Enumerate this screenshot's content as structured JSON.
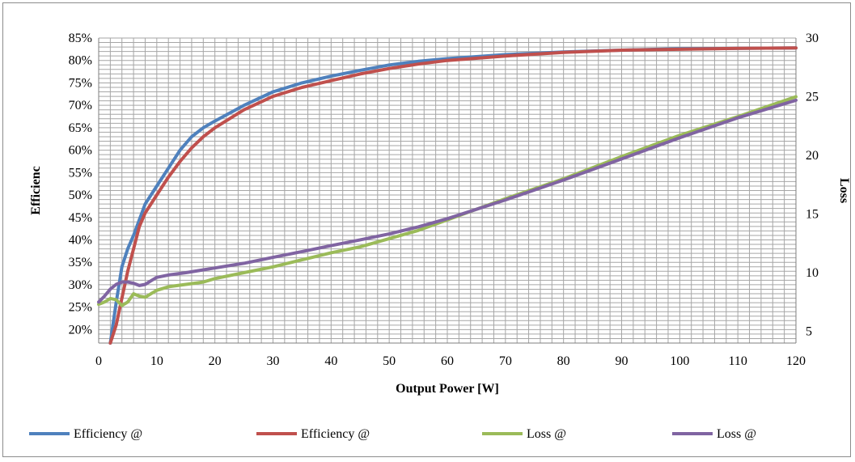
{
  "chart_data": {
    "type": "line",
    "title": "",
    "xlabel": "Output Power [W]",
    "ylabel": "Efficienc",
    "y2label": "Loss",
    "xlim": [
      0,
      120
    ],
    "ylim": [
      17,
      85
    ],
    "y2lim": [
      4,
      30
    ],
    "x_ticks": [
      0,
      10,
      20,
      30,
      40,
      50,
      60,
      70,
      80,
      90,
      100,
      110,
      120
    ],
    "y_ticks": [
      20,
      25,
      30,
      35,
      40,
      45,
      50,
      55,
      60,
      65,
      70,
      75,
      80,
      85
    ],
    "y_tick_labels": [
      "20%",
      "25%",
      "30%",
      "35%",
      "40%",
      "45%",
      "50%",
      "55%",
      "60%",
      "65%",
      "70%",
      "75%",
      "80%",
      "85%"
    ],
    "y2_ticks": [
      5,
      10,
      15,
      20,
      25,
      30
    ],
    "grid": true,
    "legend_position": "bottom",
    "series": [
      {
        "name": "Efficiency @",
        "axis": "left",
        "color": "#4f81bd",
        "points": [
          [
            2,
            17
          ],
          [
            3,
            26
          ],
          [
            4,
            34
          ],
          [
            5,
            38
          ],
          [
            6,
            41
          ],
          [
            8,
            48
          ],
          [
            10,
            52
          ],
          [
            12,
            56
          ],
          [
            14,
            60
          ],
          [
            16,
            63
          ],
          [
            18,
            65
          ],
          [
            20,
            66.5
          ],
          [
            25,
            70
          ],
          [
            30,
            73
          ],
          [
            35,
            75
          ],
          [
            40,
            76.5
          ],
          [
            45,
            77.8
          ],
          [
            50,
            79
          ],
          [
            55,
            79.8
          ],
          [
            60,
            80.4
          ],
          [
            70,
            81.3
          ],
          [
            80,
            81.9
          ],
          [
            90,
            82.3
          ],
          [
            100,
            82.6
          ],
          [
            110,
            82.7
          ],
          [
            120,
            82.8
          ]
        ]
      },
      {
        "name": "Efficiency @",
        "axis": "left",
        "color": "#c0504d",
        "points": [
          [
            2,
            17
          ],
          [
            3,
            21
          ],
          [
            4,
            27
          ],
          [
            5,
            33
          ],
          [
            6,
            38
          ],
          [
            7,
            43
          ],
          [
            8,
            46
          ],
          [
            10,
            50
          ],
          [
            12,
            54
          ],
          [
            14,
            57.5
          ],
          [
            16,
            60.5
          ],
          [
            18,
            63
          ],
          [
            20,
            65
          ],
          [
            25,
            69
          ],
          [
            30,
            72
          ],
          [
            35,
            74
          ],
          [
            40,
            75.5
          ],
          [
            45,
            77
          ],
          [
            50,
            78.2
          ],
          [
            55,
            79.2
          ],
          [
            60,
            80
          ],
          [
            70,
            81
          ],
          [
            80,
            81.8
          ],
          [
            90,
            82.3
          ],
          [
            100,
            82.5
          ],
          [
            110,
            82.7
          ],
          [
            120,
            82.8
          ]
        ]
      },
      {
        "name": "Loss @",
        "axis": "right",
        "color": "#9bbb59",
        "points": [
          [
            0,
            7.3
          ],
          [
            1,
            7.5
          ],
          [
            2,
            7.8
          ],
          [
            3,
            7.7
          ],
          [
            4,
            7.2
          ],
          [
            5,
            7.5
          ],
          [
            6,
            8.2
          ],
          [
            7,
            8.0
          ],
          [
            8,
            7.9
          ],
          [
            9,
            8.2
          ],
          [
            10,
            8.5
          ],
          [
            12,
            8.8
          ],
          [
            15,
            9.0
          ],
          [
            18,
            9.2
          ],
          [
            20,
            9.5
          ],
          [
            25,
            10.0
          ],
          [
            30,
            10.5
          ],
          [
            35,
            11.1
          ],
          [
            40,
            11.7
          ],
          [
            45,
            12.2
          ],
          [
            50,
            12.9
          ],
          [
            55,
            13.6
          ],
          [
            60,
            14.5
          ],
          [
            70,
            16.3
          ],
          [
            80,
            18.0
          ],
          [
            90,
            19.9
          ],
          [
            100,
            21.7
          ],
          [
            110,
            23.3
          ],
          [
            120,
            25.0
          ]
        ]
      },
      {
        "name": "Loss @",
        "axis": "right",
        "color": "#8064a2",
        "points": [
          [
            0,
            7.5
          ],
          [
            1,
            8.0
          ],
          [
            2,
            8.6
          ],
          [
            3,
            9.0
          ],
          [
            4,
            9.2
          ],
          [
            5,
            9.2
          ],
          [
            6,
            9.1
          ],
          [
            7,
            8.9
          ],
          [
            8,
            9.0
          ],
          [
            9,
            9.3
          ],
          [
            10,
            9.6
          ],
          [
            12,
            9.8
          ],
          [
            15,
            10.0
          ],
          [
            20,
            10.4
          ],
          [
            25,
            10.8
          ],
          [
            30,
            11.3
          ],
          [
            35,
            11.8
          ],
          [
            40,
            12.3
          ],
          [
            45,
            12.8
          ],
          [
            50,
            13.3
          ],
          [
            55,
            13.9
          ],
          [
            60,
            14.6
          ],
          [
            70,
            16.2
          ],
          [
            80,
            17.9
          ],
          [
            90,
            19.7
          ],
          [
            100,
            21.5
          ],
          [
            110,
            23.2
          ],
          [
            120,
            24.7
          ]
        ]
      }
    ]
  }
}
